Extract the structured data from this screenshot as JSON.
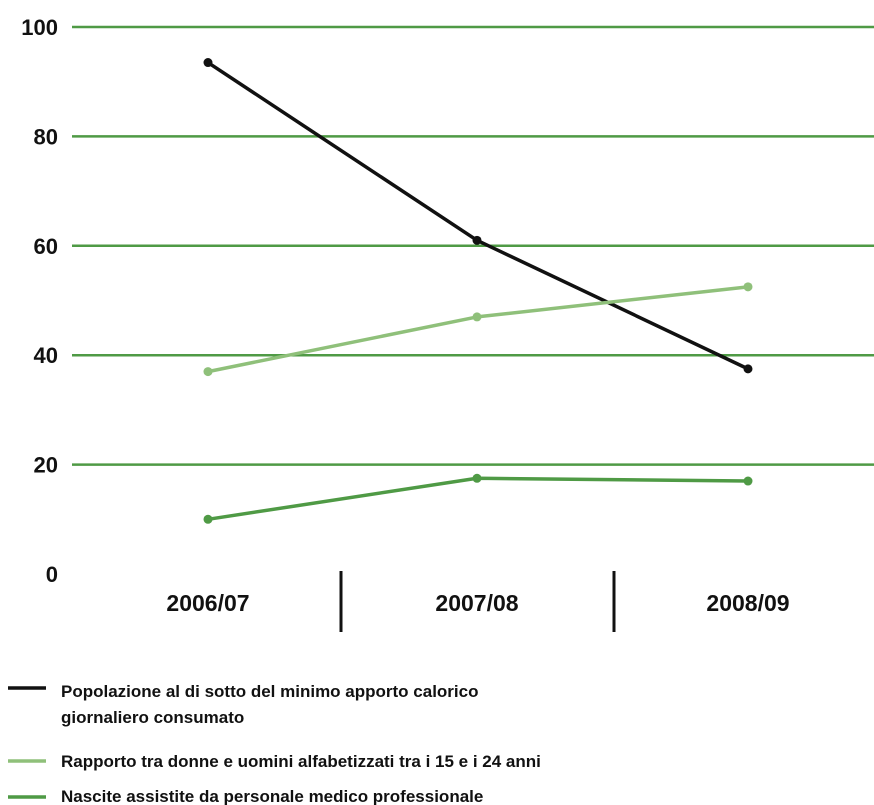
{
  "chart_data": {
    "type": "line",
    "categories": [
      "2006/07",
      "2007/08",
      "2008/09"
    ],
    "ylim": [
      0,
      100
    ],
    "yticks": [
      "0",
      "20",
      "40",
      "60",
      "80",
      "100"
    ],
    "grid": true,
    "legend_position": "bottom",
    "series": [
      {
        "legend_lines": [
          "Popolazione al di sotto del minimo apporto calorico",
          "giornaliero consumato"
        ],
        "values": [
          93.5,
          61,
          37.5
        ],
        "color": "#111111"
      },
      {
        "legend_lines": [
          "Rapporto tra donne e uomini alfabetizzati tra i 15 e i 24 anni"
        ],
        "values": [
          37,
          47,
          52.5
        ],
        "color": "#8fc07a"
      },
      {
        "legend_lines": [
          "Nascite assistite da personale medico professionale"
        ],
        "values": [
          10,
          17.5,
          17
        ],
        "color": "#4f9a45"
      }
    ],
    "colors": {
      "gridline": "#4f9a45",
      "separator": "#111111"
    }
  }
}
